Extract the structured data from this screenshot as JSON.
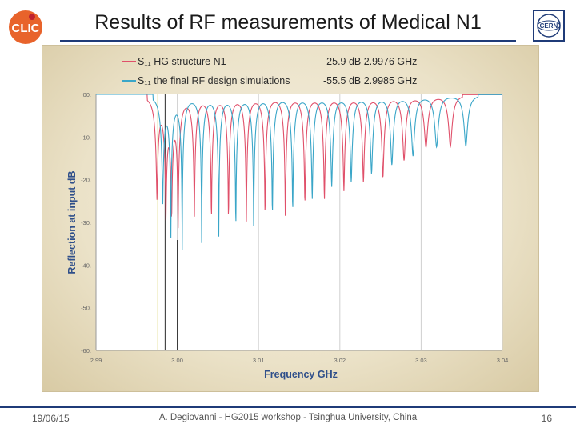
{
  "slide": {
    "title": "Results of RF measurements of Medical N1",
    "footer_date": "19/06/15",
    "footer_center": "A. Degiovanni - HG2015 workshop - Tsinghua University, China",
    "footer_page": "16",
    "logo_left_text": "CLIC",
    "logo_right_text": "CERN"
  },
  "chart_data": {
    "type": "line",
    "xlabel": "Frequency GHz",
    "ylabel": "Reflection at input dB",
    "xlim": [
      2.99,
      3.04
    ],
    "ylim": [
      -60,
      0
    ],
    "x_ticks": [
      "2.99",
      "3.00",
      "3.01",
      "3.02",
      "3.03",
      "3.04"
    ],
    "y_ticks": [
      "00.",
      "-10.",
      "-20.",
      "-30.",
      "-40.",
      "-50.",
      "-60."
    ],
    "grid": "vertical",
    "legend_position": "top",
    "marker_lines": [
      2.9976,
      2.9985,
      3.0
    ],
    "series": [
      {
        "name": "S₁₁ HG structure N1",
        "legend_value": "-25.9 dB  2.9976 GHz",
        "color": "#e0506a",
        "dips": [
          [
            2.9975,
            -23
          ],
          [
            2.9986,
            -26
          ],
          [
            2.9993,
            -25
          ],
          [
            3.0001,
            -29
          ],
          [
            3.0021,
            -28
          ],
          [
            3.0042,
            -29
          ],
          [
            3.0063,
            -29
          ],
          [
            3.0085,
            -29
          ],
          [
            3.0108,
            -28
          ],
          [
            3.0133,
            -30
          ],
          [
            3.0157,
            -25
          ],
          [
            3.0181,
            -24
          ],
          [
            3.0205,
            -22
          ],
          [
            3.0229,
            -20
          ],
          [
            3.0253,
            -19
          ],
          [
            3.0279,
            -15
          ],
          [
            3.0306,
            -12
          ],
          [
            3.0336,
            -12
          ]
        ]
      },
      {
        "name": "S₁₁ the final RF design simulations",
        "legend_value": "-55.5 dB  2.9985 GHz",
        "color": "#3aa6c8",
        "dips": [
          [
            2.9982,
            -25
          ],
          [
            2.9992,
            -57
          ],
          [
            3.0006,
            -39
          ],
          [
            3.003,
            -34
          ],
          [
            3.0051,
            -34
          ],
          [
            3.0072,
            -32
          ],
          [
            3.0094,
            -31
          ],
          [
            3.0117,
            -28
          ],
          [
            3.0142,
            -27
          ],
          [
            3.0166,
            -24
          ],
          [
            3.019,
            -21
          ],
          [
            3.0214,
            -20
          ],
          [
            3.0239,
            -18
          ],
          [
            3.0264,
            -16
          ],
          [
            3.029,
            -14
          ],
          [
            3.0319,
            -12
          ],
          [
            3.0355,
            -12
          ]
        ]
      }
    ]
  }
}
